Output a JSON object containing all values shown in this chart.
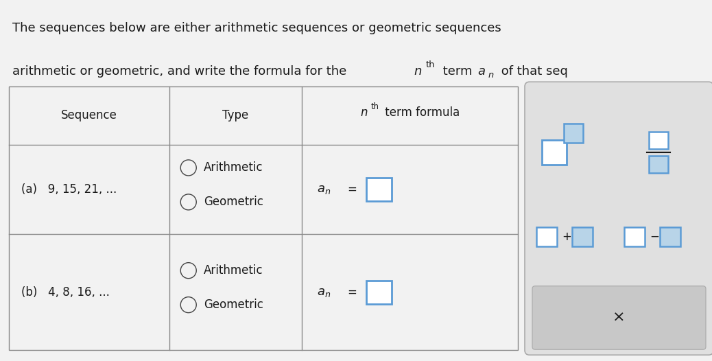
{
  "bg_color": "#f2f2f2",
  "text_color": "#1a1a1a",
  "border_color": "#888888",
  "circle_color": "#444444",
  "answer_box_color": "#5b9bd5",
  "sidebar_bg": "#e0e0e0",
  "sidebar_border": "#aaaaaa",
  "xbtn_bg": "#c8c8c8",
  "white": "#ffffff",
  "title_line1": "The sequences below are either arithmetic sequences or geometric sequences",
  "title_line2_part1": "arithmetic or geometric, and write the formula for the ",
  "title_line2_n": "n",
  "title_line2_sup": "th",
  "title_line2_part2": " term ",
  "title_line2_a": "a",
  "title_line2_sub": "n",
  "title_line2_part3": " of that seq",
  "col0_header": "Sequence",
  "col1_header": "Type",
  "col2_header_n": "n",
  "col2_header_sup": "th",
  "col2_header_rest": " term formula",
  "row_a_seq": "(a)   9, 15, 21, ...",
  "row_b_seq": "(b)   4, 8, 16, ...",
  "type1": "Arithmetic",
  "type2": "Geometric",
  "font_title": 13,
  "font_header": 12,
  "font_body": 12,
  "fig_w": 10.38,
  "fig_h": 5.26
}
